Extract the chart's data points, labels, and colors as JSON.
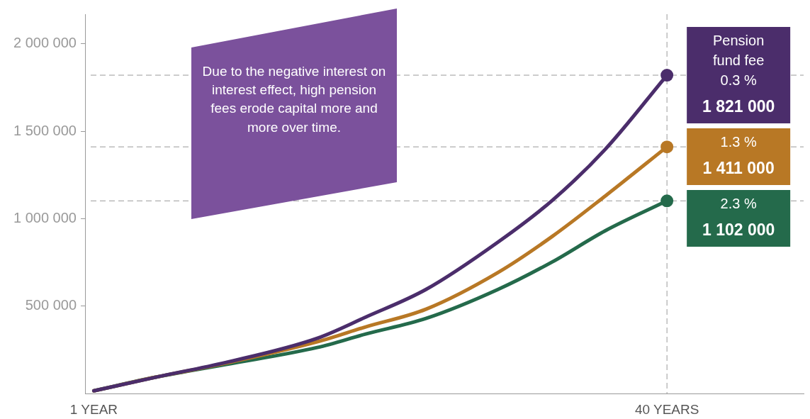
{
  "chart_data": {
    "type": "line",
    "x": [
      1,
      5.2,
      10,
      16.2,
      19.5,
      23.6,
      28.5,
      32.2,
      35.8,
      40
    ],
    "xlim": [
      0.4,
      49.3
    ],
    "xticks": [
      {
        "value": 1,
        "label": "1 YEAR"
      },
      {
        "value": 40,
        "label": "40 YEARS"
      }
    ],
    "ylim": [
      0,
      2170000
    ],
    "yticks": [
      {
        "value": 500000,
        "label": "500 000"
      },
      {
        "value": 1000000,
        "label": "1 000 000"
      },
      {
        "value": 1500000,
        "label": "1 500 000"
      },
      {
        "value": 2000000,
        "label": "2 000 000"
      }
    ],
    "legend_title": "Pension fund fee",
    "series": [
      {
        "name": "0.3 %",
        "color": "#4b2d6b",
        "values": [
          15000,
          93000,
          178000,
          316000,
          437000,
          595000,
          866000,
          1105000,
          1397000,
          1821000
        ],
        "value_labels": [
          null,
          null,
          null,
          null,
          null,
          null,
          null,
          null,
          null,
          "1 821 000"
        ]
      },
      {
        "name": "1.3 %",
        "color": "#b87825",
        "values": [
          15000,
          93000,
          174000,
          296000,
          381000,
          482000,
          692000,
          899000,
          1130000,
          1411000
        ],
        "value_labels": [
          null,
          null,
          null,
          null,
          null,
          null,
          null,
          null,
          null,
          "1 411 000"
        ]
      },
      {
        "name": "2.3 %",
        "color": "#246a4b",
        "values": [
          15000,
          93000,
          166000,
          263000,
          340000,
          429000,
          595000,
          753000,
          931000,
          1102000
        ],
        "value_labels": [
          null,
          null,
          null,
          null,
          null,
          null,
          null,
          null,
          null,
          "1 102 000"
        ]
      }
    ],
    "ref_lines": [
      {
        "axis": "y",
        "value": 1821000
      },
      {
        "axis": "y",
        "value": 1411000
      },
      {
        "axis": "y",
        "value": 1102000
      },
      {
        "axis": "x",
        "value": 40
      }
    ],
    "annotations": [
      "Due to the negative interest on interest effect, high pension fees erode capital more and more over time."
    ],
    "grid": false,
    "legend": false
  }
}
